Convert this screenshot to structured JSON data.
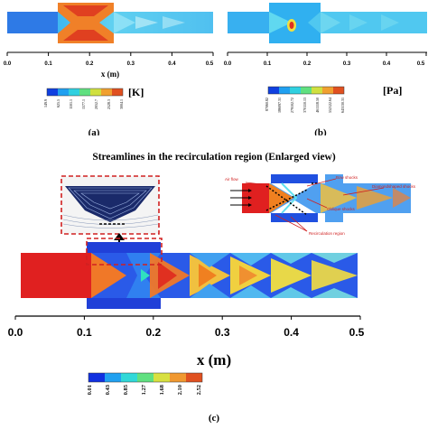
{
  "panel_a": {
    "x_axis_label": "x (m)",
    "x_ticks": [
      "0.0",
      "0.1",
      "0.2",
      "0.3",
      "0.4",
      "0.5"
    ],
    "colorbar_ticks": [
      "149.9",
      "625.5",
      "1101.1",
      "1577.1",
      "2052.7",
      "2528.3",
      "3004.1"
    ],
    "unit": "[K]",
    "label": "(a)"
  },
  "panel_b": {
    "x_ticks": [
      "0.0",
      "0.1",
      "0.2",
      "0.3",
      "0.4",
      "0.5"
    ],
    "colorbar_ticks": [
      "87060.82",
      "186097.31",
      "279102.72",
      "370110.13",
      "461118.50",
      "552122.64",
      "643130.31"
    ],
    "unit": "[Pa]",
    "label": "(b)"
  },
  "panel_c": {
    "title": "Streamlines in the recirculation region (Enlarged view)",
    "x_axis_label": "x (m)",
    "x_ticks": [
      "0.0",
      "0.1",
      "0.2",
      "0.3",
      "0.4",
      "0.5"
    ],
    "colorbar_ticks": [
      "0.01",
      "0.43",
      "0.85",
      "1.27",
      "1.68",
      "2.10",
      "2.52"
    ],
    "label": "(c)",
    "annotations": {
      "air_flow": "Air flow",
      "bow_shocks": "Bow shocks",
      "oblique_shocks": "Oblique shocks",
      "diamond_shocks": "Diamondshaped shocks",
      "recirculation_region": "Recirculation region"
    }
  },
  "colors": {
    "blue": "#2050e0",
    "cyan": "#20c0f0",
    "green": "#60d080",
    "yellow": "#f0e040",
    "orange": "#f08020",
    "red": "#e02020",
    "frame_red": "#d02020"
  }
}
